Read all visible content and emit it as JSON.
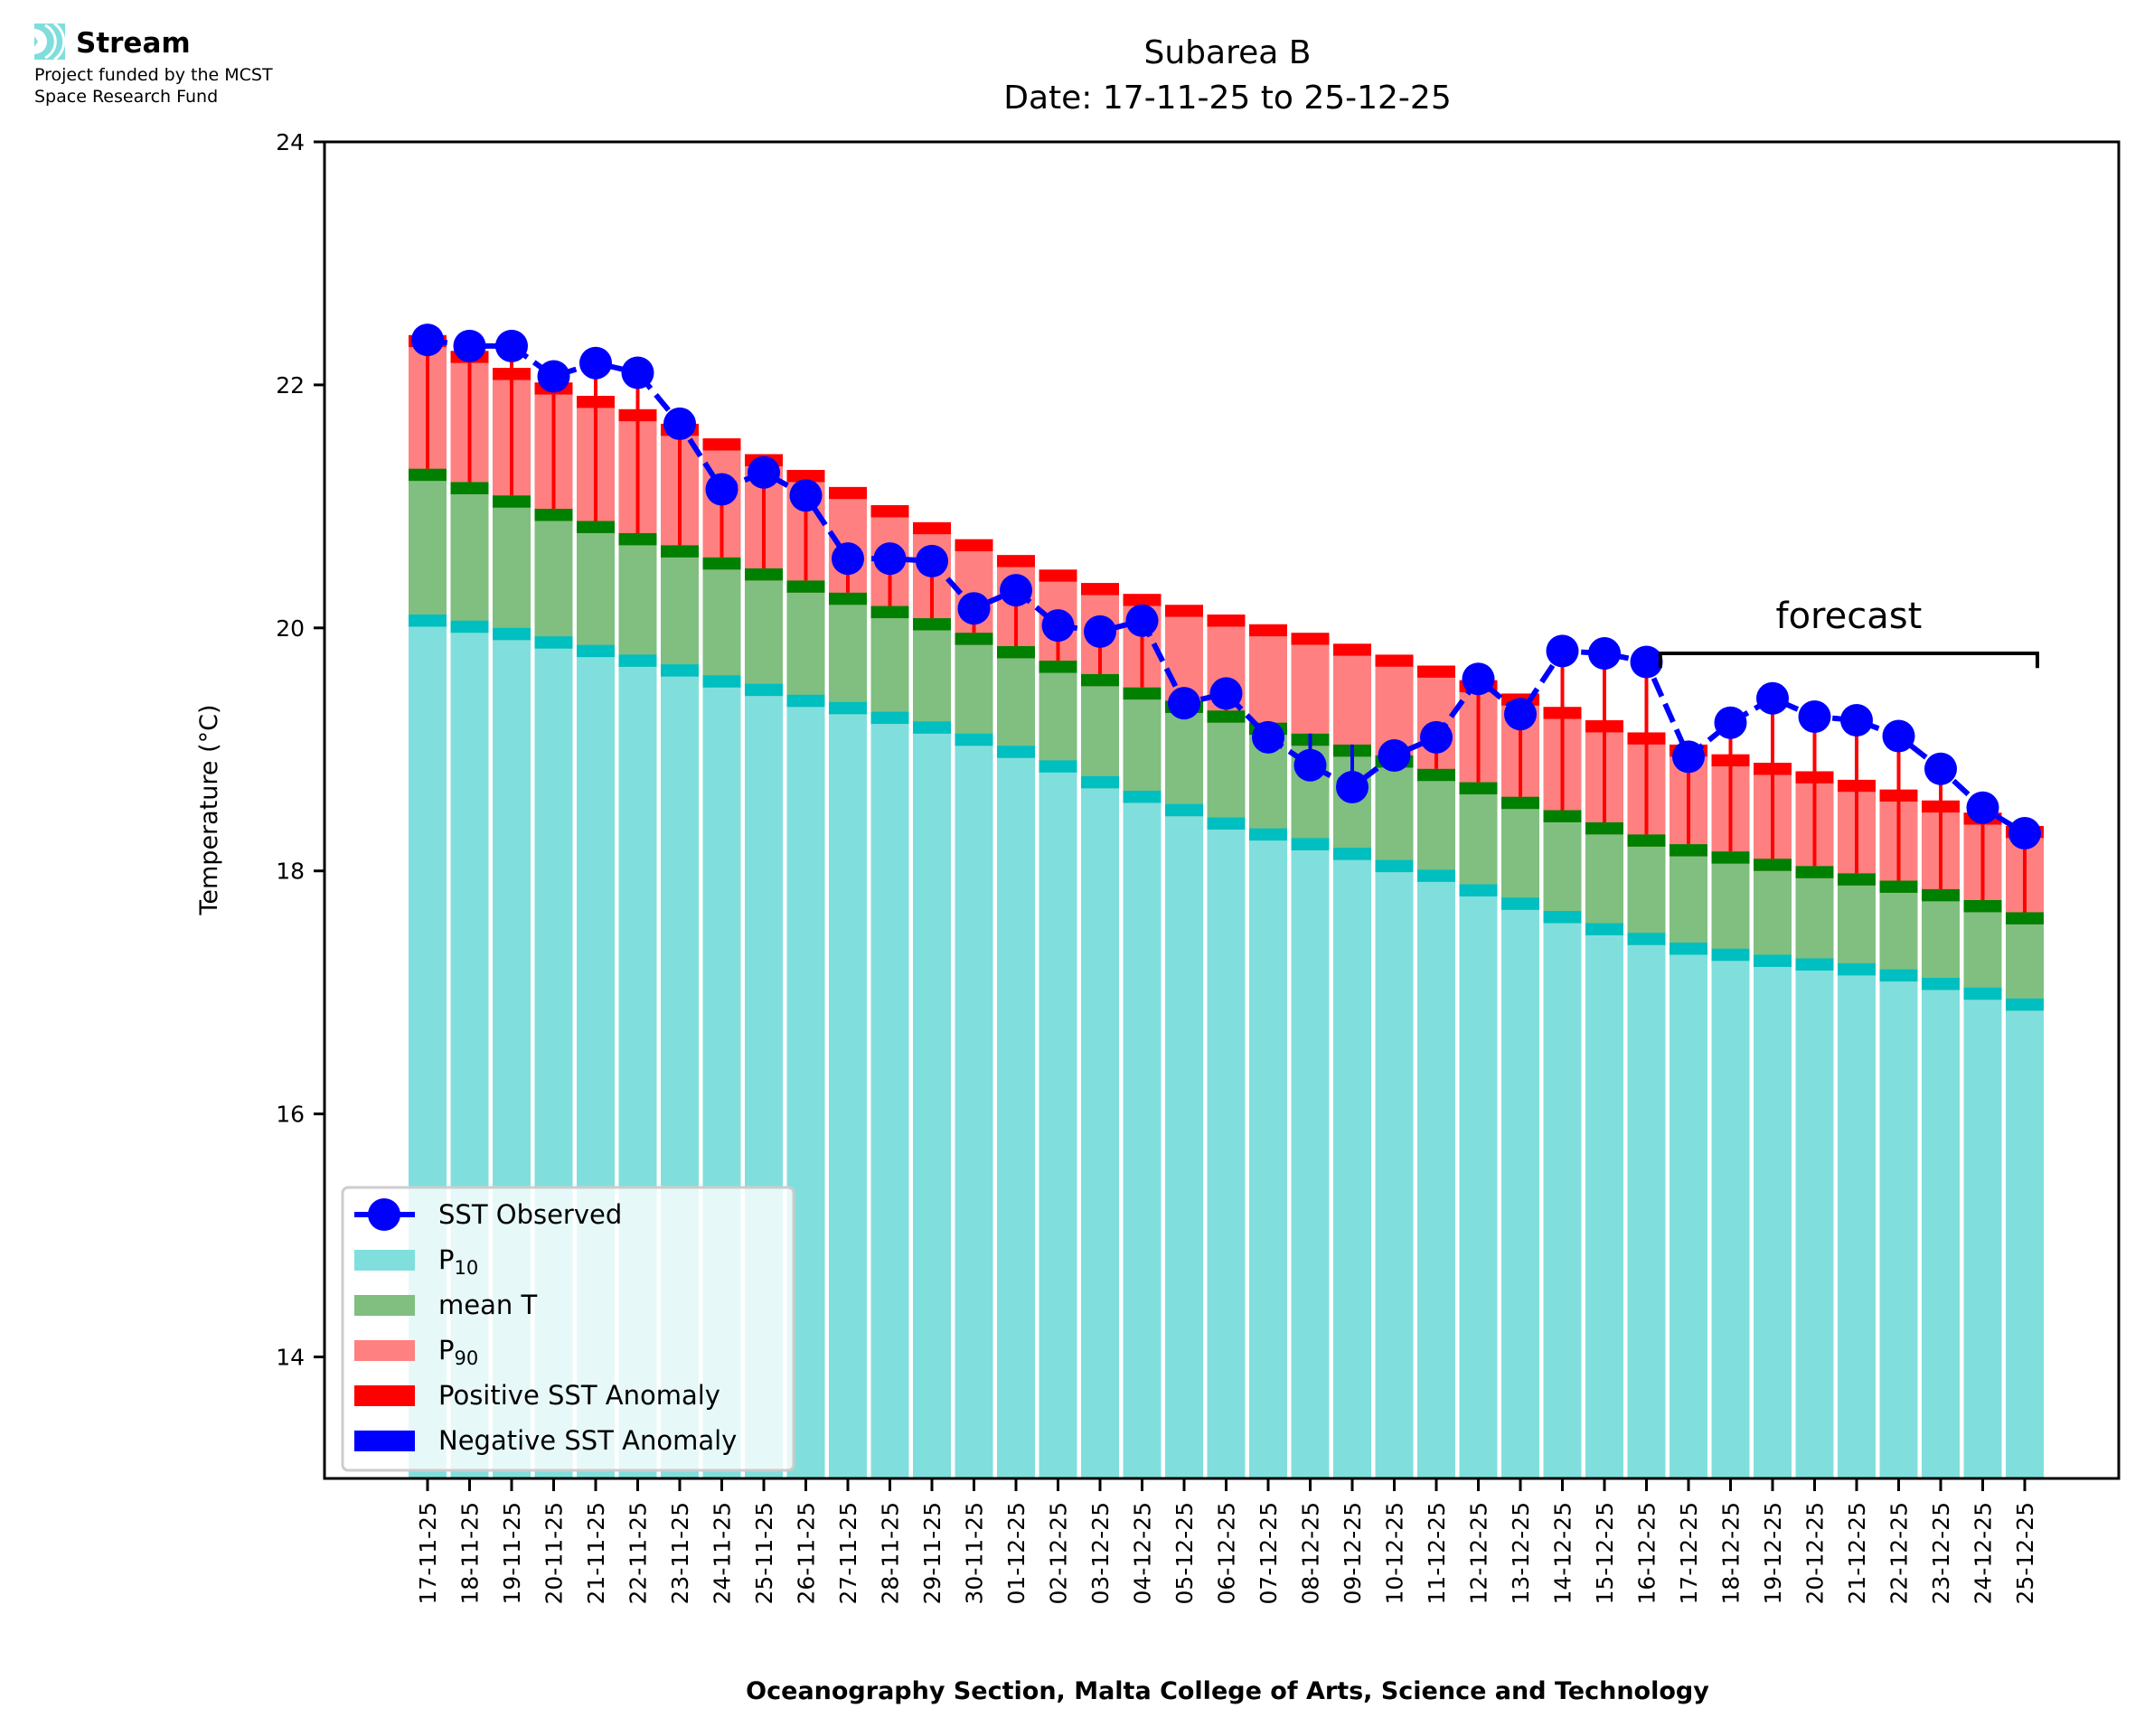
{
  "logo": {
    "name": "Stream",
    "subtitle_line1": "Project funded by the MCST",
    "subtitle_line2": "Space Research Fund",
    "icon": "stream-waves-icon",
    "color": "#7fdedc"
  },
  "chart_data": {
    "type": "bar",
    "title": "Subarea B",
    "subtitle": "Date: 17-11-25 to 25-12-25",
    "xlabel": "Oceanography Section, Malta College of Arts, Science and Technology",
    "ylabel": "Temperature (°C)",
    "ylim": [
      13,
      24
    ],
    "yticks": [
      14,
      16,
      18,
      20,
      22,
      24
    ],
    "grid": false,
    "legend_position": "lower-left",
    "categories": [
      "17-11-25",
      "18-11-25",
      "19-11-25",
      "20-11-25",
      "21-11-25",
      "22-11-25",
      "23-11-25",
      "24-11-25",
      "25-11-25",
      "26-11-25",
      "27-11-25",
      "28-11-25",
      "29-11-25",
      "30-11-25",
      "01-12-25",
      "02-12-25",
      "03-12-25",
      "04-12-25",
      "05-12-25",
      "06-12-25",
      "07-12-25",
      "08-12-25",
      "09-12-25",
      "10-12-25",
      "11-12-25",
      "12-12-25",
      "13-12-25",
      "14-12-25",
      "15-12-25",
      "16-12-25",
      "17-12-25",
      "18-12-25",
      "19-12-25",
      "20-12-25",
      "21-12-25",
      "22-12-25",
      "23-12-25",
      "24-12-25",
      "25-12-25"
    ],
    "series": [
      {
        "name": "P10",
        "color": "#80dfdd",
        "cap_color": "#00bfc0",
        "values": [
          20.11,
          20.06,
          20.0,
          19.93,
          19.86,
          19.78,
          19.7,
          19.61,
          19.54,
          19.45,
          19.39,
          19.31,
          19.23,
          19.13,
          19.03,
          18.91,
          18.78,
          18.66,
          18.55,
          18.44,
          18.35,
          18.27,
          18.19,
          18.09,
          18.01,
          17.89,
          17.78,
          17.67,
          17.57,
          17.49,
          17.41,
          17.36,
          17.31,
          17.28,
          17.24,
          17.19,
          17.12,
          17.04,
          16.95
        ]
      },
      {
        "name": "mean T",
        "color": "#80bf80",
        "cap_color": "#008000",
        "values": [
          21.31,
          21.2,
          21.09,
          20.98,
          20.88,
          20.78,
          20.68,
          20.58,
          20.49,
          20.39,
          20.29,
          20.18,
          20.08,
          19.96,
          19.85,
          19.73,
          19.62,
          19.51,
          19.4,
          19.32,
          19.22,
          19.13,
          19.04,
          18.95,
          18.84,
          18.73,
          18.61,
          18.5,
          18.4,
          18.3,
          18.22,
          18.16,
          18.1,
          18.04,
          17.98,
          17.92,
          17.85,
          17.76,
          17.66
        ]
      },
      {
        "name": "P90",
        "color": "#ff8080",
        "cap_color": "#ff0000",
        "values": [
          22.41,
          22.28,
          22.14,
          22.02,
          21.91,
          21.8,
          21.68,
          21.56,
          21.43,
          21.3,
          21.16,
          21.01,
          20.87,
          20.73,
          20.6,
          20.48,
          20.37,
          20.28,
          20.19,
          20.11,
          20.03,
          19.96,
          19.87,
          19.78,
          19.69,
          19.57,
          19.46,
          19.35,
          19.24,
          19.14,
          19.04,
          18.96,
          18.89,
          18.82,
          18.75,
          18.67,
          18.58,
          18.48,
          18.37
        ]
      },
      {
        "name": "SST Observed",
        "color": "#0000ff",
        "style": "dashed-line-with-circles",
        "values": [
          22.37,
          22.32,
          22.32,
          22.07,
          22.18,
          22.1,
          21.68,
          21.14,
          21.28,
          21.09,
          20.57,
          20.57,
          20.55,
          20.16,
          20.31,
          20.02,
          19.97,
          20.06,
          19.38,
          19.46,
          19.1,
          18.87,
          18.69,
          18.95,
          19.1,
          19.58,
          19.29,
          19.81,
          19.79,
          19.72,
          18.94,
          19.22,
          19.42,
          19.27,
          19.24,
          19.11,
          18.84,
          18.52,
          18.31
        ]
      }
    ],
    "anomaly_colors": {
      "positive": "#ff0000",
      "negative": "#0000ff"
    },
    "annotation": {
      "text": "forecast",
      "from_category": "17-12-25",
      "to_category": "25-12-25"
    },
    "legend": [
      {
        "label": "SST Observed",
        "kind": "line-marker",
        "color": "#0000ff"
      },
      {
        "label": "P",
        "sub": "10",
        "kind": "patch",
        "color": "#80dfdd"
      },
      {
        "label": "mean T",
        "kind": "patch",
        "color": "#80bf80"
      },
      {
        "label": "P",
        "sub": "90",
        "kind": "patch",
        "color": "#ff8080"
      },
      {
        "label": "Positive SST Anomaly",
        "kind": "patch",
        "color": "#ff0000"
      },
      {
        "label": "Negative SST Anomaly",
        "kind": "patch",
        "color": "#0000ff"
      }
    ]
  }
}
